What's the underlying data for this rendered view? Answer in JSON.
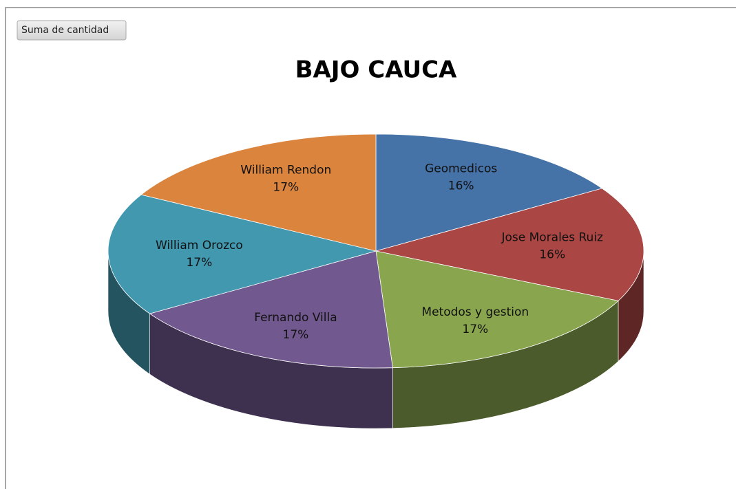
{
  "button": "Suma de cantidad",
  "chart_data": {
    "type": "pie",
    "title": "BAJO CAUCA",
    "categories": [
      "Geomedicos",
      "Jose Morales Ruiz",
      "Metodos y gestion",
      "Fernando Villa",
      "William Orozco",
      "William Rendon"
    ],
    "values": [
      16,
      16,
      17,
      17,
      17,
      17
    ],
    "value_labels": [
      "16%",
      "16%",
      "17%",
      "17%",
      "17%",
      "17%"
    ],
    "colors": [
      "#4572a7",
      "#aa4643",
      "#89a54e",
      "#71588f",
      "#4198af",
      "#db843d"
    ]
  }
}
